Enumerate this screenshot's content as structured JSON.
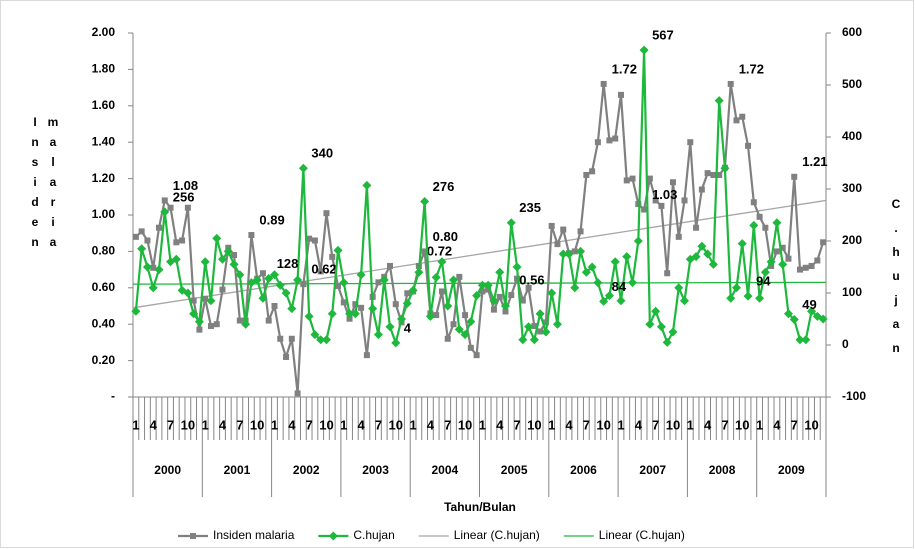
{
  "chart_data": {
    "type": "line",
    "ylabel": "Insiden malaria",
    "y2label": "C.hujan",
    "xlabel": "Tahun/Bulan",
    "categories": [
      "1",
      null,
      null,
      "4",
      null,
      null,
      "7",
      null,
      null,
      "10",
      null,
      null,
      "1",
      null,
      null,
      "4",
      null,
      null,
      "7",
      null,
      null,
      "10",
      null,
      null,
      "1",
      null,
      null,
      "4",
      null,
      null,
      "7",
      null,
      null,
      "10",
      null,
      null,
      "1",
      null,
      null,
      "4",
      null,
      null,
      "7",
      null,
      null,
      "10",
      null,
      null,
      "1",
      null,
      null,
      "4",
      null,
      null,
      "7",
      null,
      null,
      "10",
      null,
      null,
      "1",
      null,
      null,
      "4",
      null,
      null,
      "7",
      null,
      null,
      "10",
      null,
      null,
      "1",
      null,
      null,
      "4",
      null,
      null,
      "7",
      null,
      null,
      "10",
      null,
      null,
      "1",
      null,
      null,
      "4",
      null,
      null,
      "7",
      null,
      null,
      "10",
      null,
      null,
      "1",
      null,
      null,
      "4",
      null,
      null,
      "7",
      null,
      null,
      "10",
      null,
      null,
      "1",
      null,
      null,
      "4",
      null,
      null,
      "7",
      null,
      null,
      "10",
      null,
      null
    ],
    "groups": [
      "2000",
      "2001",
      "2002",
      "2003",
      "2004",
      "2005",
      "2006",
      "2007",
      "2008",
      "2009"
    ],
    "series": [
      {
        "name": "Insiden malaria",
        "color": "#808080",
        "marker": "square",
        "values": [
          0.88,
          0.91,
          0.86,
          0.71,
          0.93,
          1.08,
          1.04,
          0.85,
          0.86,
          1.04,
          0.53,
          0.37,
          0.54,
          0.39,
          0.4,
          0.59,
          0.82,
          0.78,
          0.42,
          0.42,
          0.89,
          0.65,
          0.68,
          0.42,
          0.5,
          0.32,
          0.22,
          0.32,
          0.02,
          0.62,
          0.87,
          0.86,
          0.69,
          1.01,
          0.77,
          0.61,
          0.52,
          0.43,
          0.51,
          0.49,
          0.23,
          0.55,
          0.63,
          0.66,
          0.72,
          0.51,
          0.41,
          0.57,
          0.58,
          0.72,
          0.8,
          0.46,
          0.45,
          0.58,
          0.32,
          0.4,
          0.66,
          0.45,
          0.27,
          0.23,
          0.58,
          0.59,
          0.48,
          0.55,
          0.47,
          0.56,
          0.65,
          0.53,
          0.6,
          0.39,
          0.36,
          0.41,
          0.94,
          0.84,
          0.92,
          0.79,
          0.8,
          0.91,
          1.22,
          1.24,
          1.4,
          1.72,
          1.41,
          1.42,
          1.66,
          1.19,
          1.2,
          1.06,
          1.03,
          1.2,
          1.08,
          1.05,
          0.68,
          1.18,
          0.88,
          1.08,
          1.4,
          0.93,
          1.14,
          1.23,
          1.22,
          1.22,
          1.26,
          1.72,
          1.52,
          1.54,
          1.38,
          1.07,
          0.99,
          0.93,
          0.72,
          0.8,
          0.82,
          0.76,
          1.21,
          0.7,
          0.71,
          0.72,
          0.75,
          0.85
        ],
        "value_labels": [
          null,
          null,
          null,
          null,
          null,
          "1.08",
          null,
          null,
          null,
          null,
          null,
          null,
          null,
          null,
          null,
          null,
          null,
          null,
          null,
          null,
          "0.89",
          null,
          null,
          null,
          null,
          null,
          null,
          null,
          null,
          "0.62",
          null,
          null,
          null,
          null,
          null,
          null,
          null,
          null,
          null,
          null,
          null,
          null,
          null,
          null,
          null,
          null,
          null,
          null,
          null,
          "0.72",
          "0.80",
          null,
          null,
          null,
          null,
          null,
          null,
          null,
          null,
          null,
          null,
          null,
          null,
          null,
          null,
          "0.56",
          null,
          null,
          null,
          null,
          null,
          null,
          null,
          null,
          null,
          null,
          null,
          null,
          null,
          null,
          null,
          "1.72",
          null,
          null,
          null,
          null,
          null,
          null,
          "1.03",
          null,
          null,
          null,
          null,
          null,
          null,
          null,
          null,
          null,
          null,
          null,
          null,
          null,
          null,
          "1.72",
          null,
          null,
          null,
          null,
          null,
          null,
          null,
          null,
          null,
          null,
          "1.21",
          null,
          null,
          null,
          null,
          null
        ]
      },
      {
        "name": "C.hujan",
        "color": "#1db83c",
        "marker": "diamond",
        "axis": "y2",
        "values": [
          65,
          185,
          150,
          110,
          145,
          256,
          160,
          165,
          105,
          100,
          60,
          45,
          160,
          85,
          205,
          165,
          180,
          155,
          135,
          40,
          120,
          125,
          90,
          128,
          135,
          115,
          100,
          70,
          125,
          340,
          55,
          20,
          10,
          10,
          60,
          182,
          120,
          60,
          60,
          135,
          307,
          70,
          20,
          125,
          35,
          4,
          50,
          80,
          105,
          140,
          276,
          55,
          130,
          160,
          75,
          125,
          30,
          20,
          45,
          95,
          115,
          115,
          85,
          140,
          75,
          235,
          150,
          10,
          35,
          10,
          60,
          25,
          100,
          40,
          175,
          175,
          110,
          180,
          140,
          150,
          120,
          84,
          95,
          160,
          85,
          170,
          120,
          200,
          567,
          40,
          65,
          35,
          5,
          25,
          110,
          85,
          165,
          170,
          190,
          175,
          155,
          470,
          340,
          90,
          110,
          195,
          94,
          230,
          90,
          140,
          160,
          235,
          155,
          60,
          49,
          10,
          10,
          65,
          55,
          50
        ],
        "value_labels": [
          null,
          null,
          null,
          null,
          null,
          "256",
          null,
          null,
          null,
          null,
          null,
          null,
          null,
          null,
          null,
          null,
          null,
          null,
          null,
          null,
          null,
          null,
          null,
          "128",
          null,
          null,
          null,
          null,
          null,
          "340",
          null,
          null,
          null,
          null,
          null,
          null,
          null,
          null,
          null,
          null,
          null,
          null,
          null,
          null,
          null,
          "4",
          null,
          null,
          null,
          null,
          "276",
          null,
          null,
          null,
          null,
          null,
          null,
          null,
          null,
          null,
          null,
          null,
          null,
          null,
          null,
          "235",
          null,
          null,
          null,
          null,
          null,
          null,
          null,
          null,
          null,
          null,
          null,
          null,
          null,
          null,
          null,
          "84",
          null,
          null,
          null,
          null,
          null,
          null,
          "567",
          null,
          null,
          null,
          null,
          null,
          null,
          null,
          null,
          null,
          null,
          null,
          null,
          null,
          null,
          null,
          null,
          null,
          "94",
          null,
          null,
          null,
          null,
          null,
          null,
          null,
          "49",
          null,
          null,
          null,
          null,
          null
        ]
      }
    ],
    "trendlines": [
      {
        "name": "Linear (C.hujan)",
        "color": "#a6a6a6",
        "values": [
          0.49,
          1.08
        ]
      },
      {
        "name": "Linear (C.hujan)",
        "color": "#1db83c",
        "values": [
          0.62,
          0.63
        ]
      }
    ],
    "ylim": [
      0,
      2
    ],
    "yticks": [
      {
        "value": 0,
        "label": "-"
      },
      {
        "value": 0.2,
        "label": "0.20"
      },
      {
        "value": 0.4,
        "label": "0.40"
      },
      {
        "value": 0.6,
        "label": "0.60"
      },
      {
        "value": 0.8,
        "label": "0.80"
      },
      {
        "value": 1,
        "label": "1.00"
      },
      {
        "value": 1.2,
        "label": "1.20"
      },
      {
        "value": 1.4,
        "label": "1.40"
      },
      {
        "value": 1.6,
        "label": "1.60"
      },
      {
        "value": 1.8,
        "label": "1.80"
      },
      {
        "value": 2,
        "label": "2.00"
      }
    ],
    "y2lim": [
      -100,
      600
    ],
    "y2ticks": [
      -100,
      0,
      100,
      200,
      300,
      400,
      500,
      600
    ],
    "grid": false,
    "legend": "bottom"
  }
}
